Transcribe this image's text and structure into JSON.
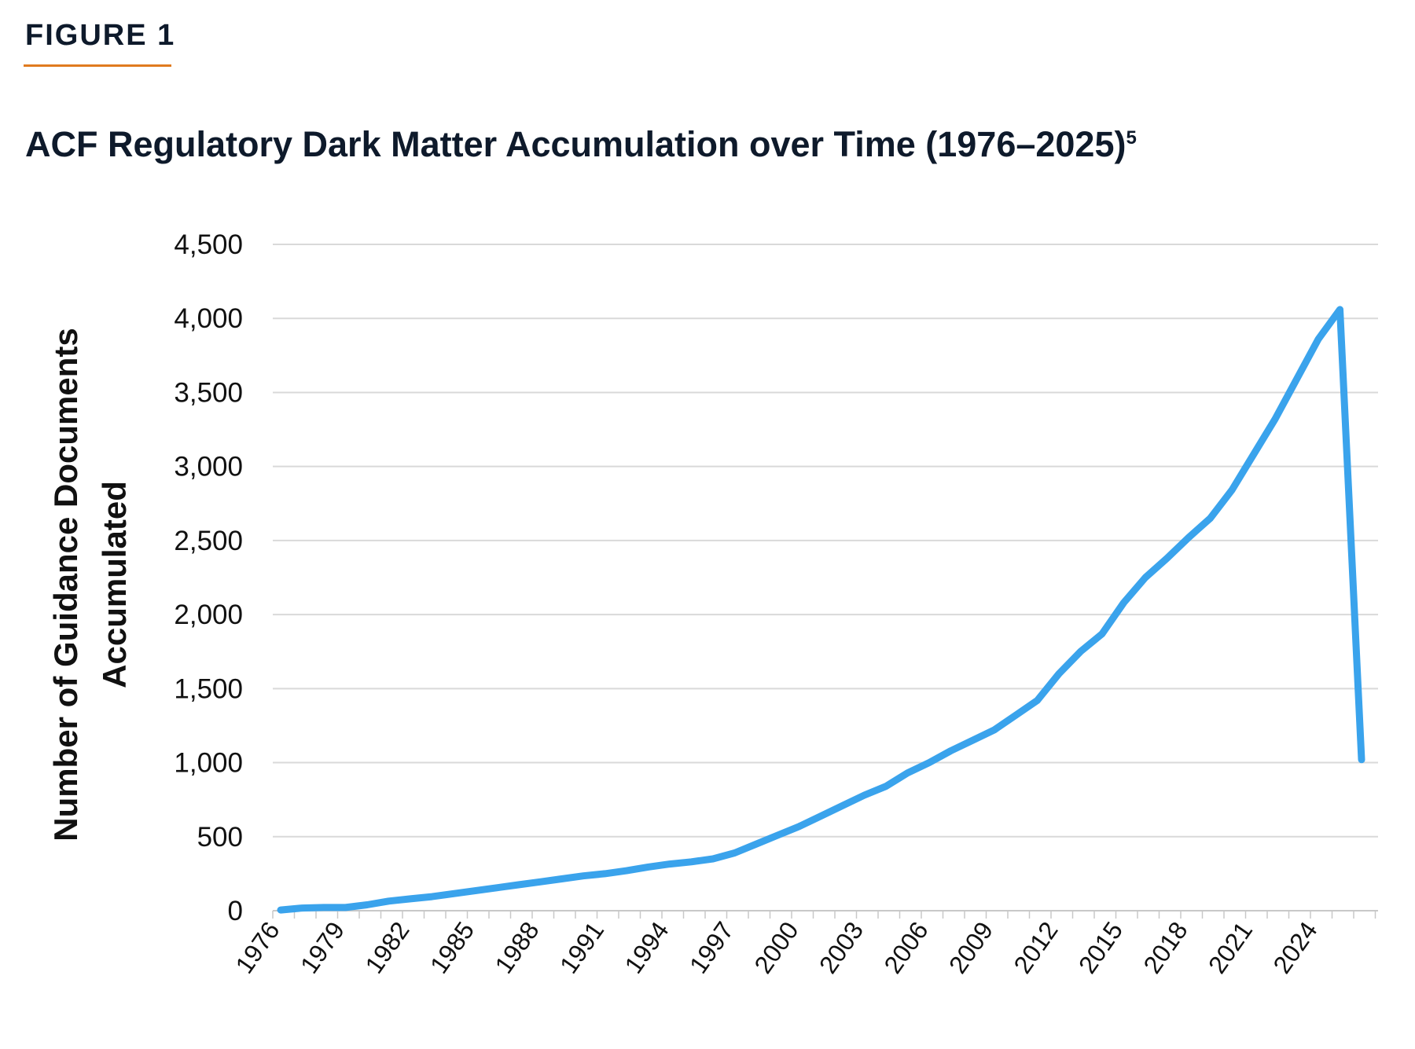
{
  "figure": {
    "label": "FIGURE 1",
    "accent_color": "#e07b1f"
  },
  "chart_data": {
    "type": "line",
    "title": "ACF Regulatory Dark Matter Accumulation over Time (1976–2025)",
    "title_footnote": "5",
    "ylabel_line1": "Number of Guidance Documents",
    "ylabel_line2": "Accumulated",
    "xlabel": "",
    "ylim": [
      0,
      4500
    ],
    "yticks": [
      0,
      500,
      1000,
      1500,
      2000,
      2500,
      3000,
      3500,
      4000,
      4500
    ],
    "ytick_labels": [
      "0",
      "500",
      "1,000",
      "1,500",
      "2,000",
      "2,500",
      "3,000",
      "3,500",
      "4,000",
      "4,500"
    ],
    "xtick_labels": [
      "1976",
      "1979",
      "1982",
      "1985",
      "1988",
      "1991",
      "1994",
      "1997",
      "2000",
      "2003",
      "2006",
      "2009",
      "2012",
      "2015",
      "2018",
      "2021",
      "2024"
    ],
    "grid": "horizontal",
    "line_color": "#3aa3ec",
    "x": [
      1976,
      1977,
      1978,
      1979,
      1980,
      1981,
      1982,
      1983,
      1984,
      1985,
      1986,
      1987,
      1988,
      1989,
      1990,
      1991,
      1992,
      1993,
      1994,
      1995,
      1996,
      1997,
      1998,
      1999,
      2000,
      2001,
      2002,
      2003,
      2004,
      2005,
      2006,
      2007,
      2008,
      2009,
      2010,
      2011,
      2012,
      2013,
      2014,
      2015,
      2016,
      2017,
      2018,
      2019,
      2020,
      2021,
      2022,
      2023,
      2024,
      2025,
      2026
    ],
    "series": [
      {
        "values": [
          5,
          18,
          22,
          22,
          40,
          65,
          80,
          95,
          115,
          135,
          155,
          175,
          195,
          215,
          235,
          250,
          270,
          295,
          315,
          330,
          350,
          390,
          450,
          510,
          570,
          640,
          710,
          780,
          840,
          930,
          1000,
          1080,
          1150,
          1220,
          1320,
          1420,
          1600,
          1750,
          1870,
          2080,
          2250,
          2380,
          2520,
          2650,
          2840,
          3080,
          3320,
          3590,
          3860,
          4060,
          1020
        ]
      }
    ]
  }
}
